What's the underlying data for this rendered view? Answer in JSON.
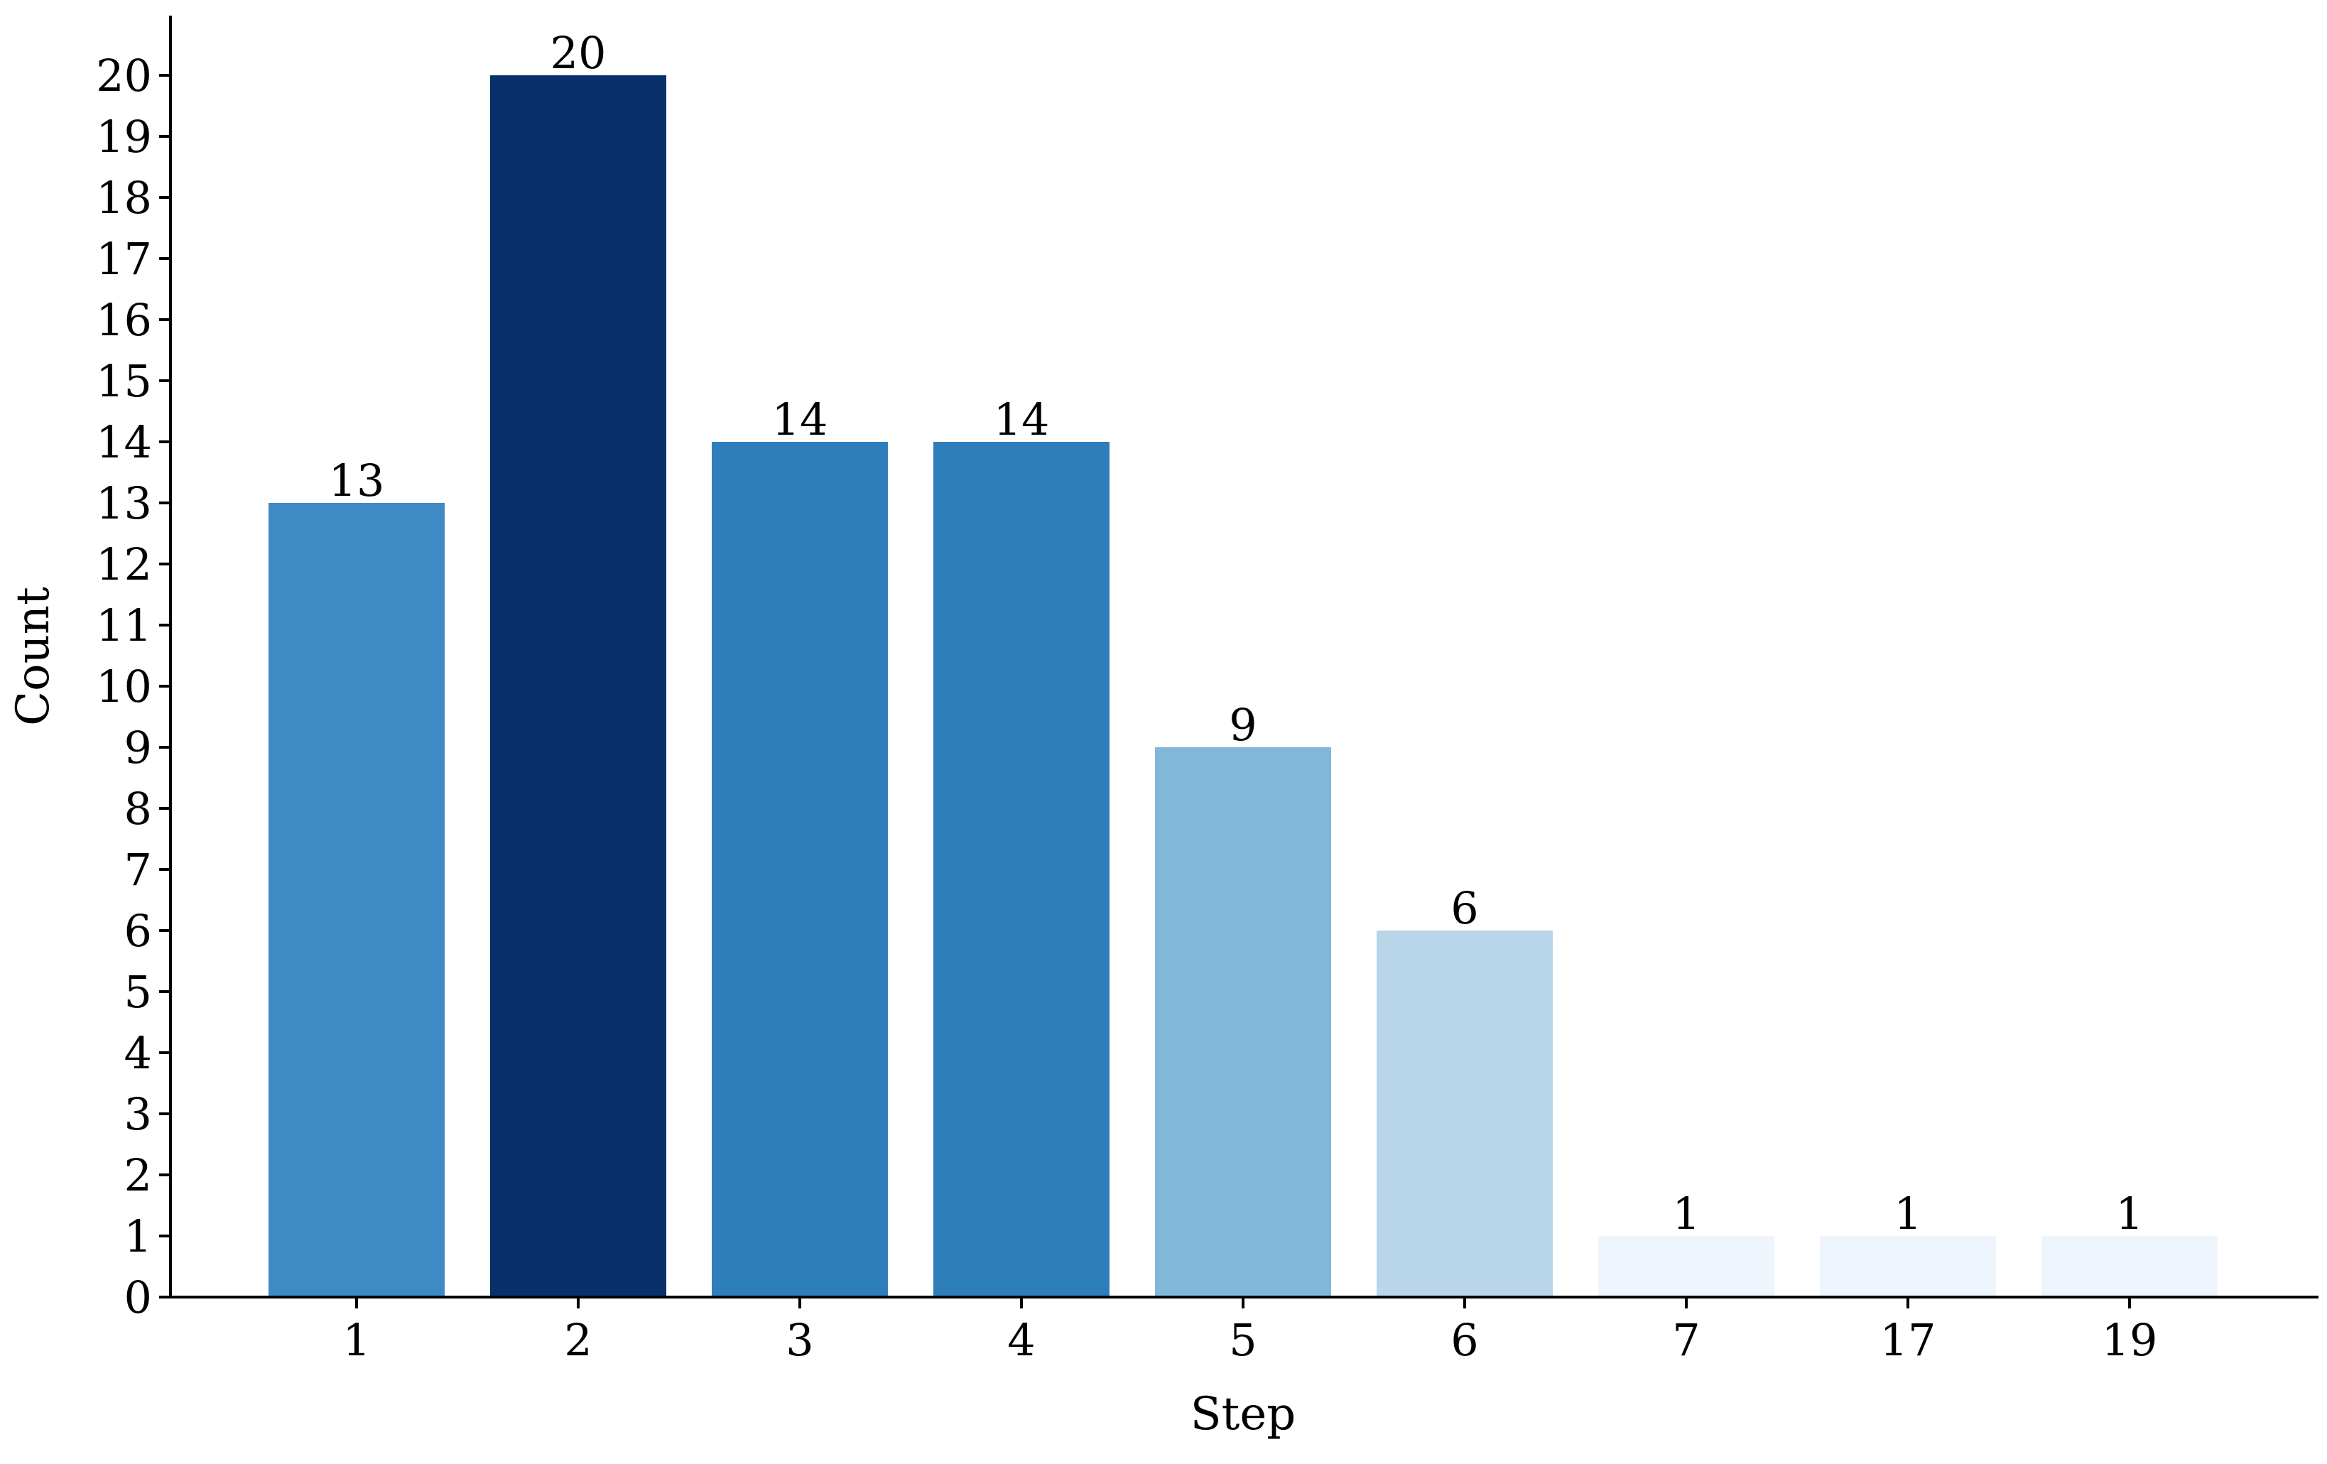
{
  "chart_data": {
    "type": "bar",
    "categories": [
      "1",
      "2",
      "3",
      "4",
      "5",
      "6",
      "7",
      "17",
      "19"
    ],
    "values": [
      13,
      20,
      14,
      14,
      9,
      6,
      1,
      1,
      1
    ],
    "bar_colors": [
      "#3d8ac4",
      "#08306b",
      "#2f7ebc",
      "#2f7ebc",
      "#81b7d9",
      "#b8d5ea",
      "#eef5fd",
      "#eef5fd",
      "#eef5fd"
    ],
    "title": "",
    "xlabel": "Step",
    "ylabel": "Count",
    "ylim": [
      0,
      21
    ],
    "yticks": [
      0,
      1,
      2,
      3,
      4,
      5,
      6,
      7,
      8,
      9,
      10,
      11,
      12,
      13,
      14,
      15,
      16,
      17,
      18,
      19,
      20
    ],
    "grid": false,
    "legend": "none"
  }
}
